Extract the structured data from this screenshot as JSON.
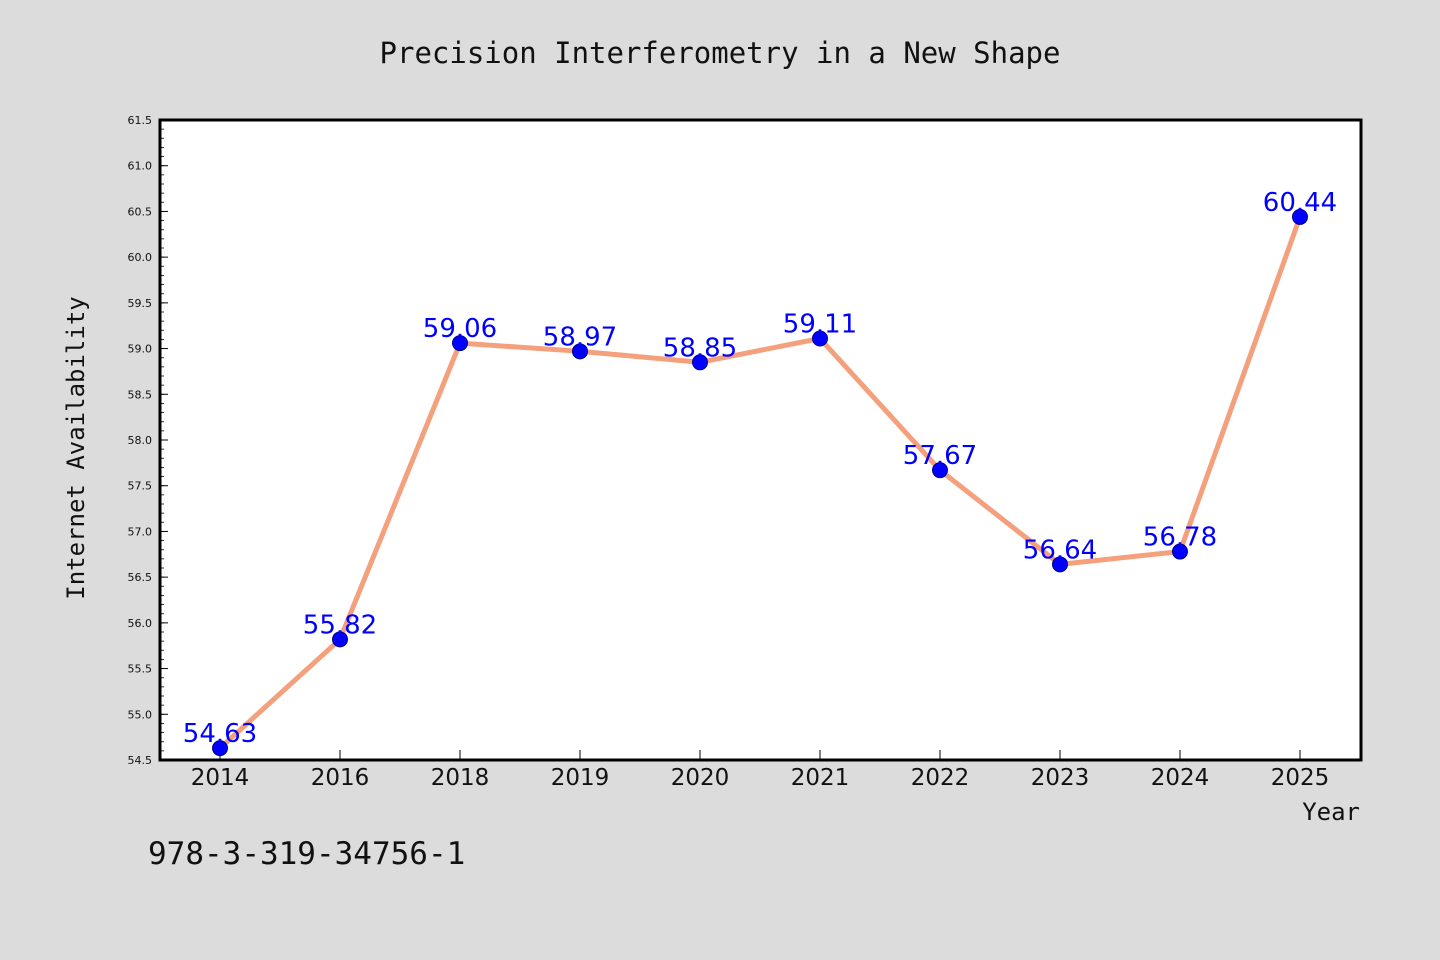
{
  "chart_data": {
    "type": "line",
    "title": "Precision Interferometry in a New Shape",
    "xlabel": "Year",
    "ylabel": "Internet Availability",
    "categories": [
      "2014",
      "2016",
      "2018",
      "2019",
      "2020",
      "2021",
      "2022",
      "2023",
      "2024",
      "2025"
    ],
    "series": [
      {
        "values": [
          54.63,
          55.82,
          59.06,
          58.97,
          58.85,
          59.11,
          57.67,
          56.64,
          56.78,
          60.44
        ],
        "data_labels": [
          "54.63",
          "55.82",
          "59.06",
          "58.97",
          "58.85",
          "59.11",
          "57.67",
          "56.64",
          "56.78",
          "60.44"
        ],
        "line_color": "#f4a07c",
        "marker_color": "#0000ff",
        "label_color": "#0000ff"
      }
    ],
    "ylim": [
      54.5,
      61.5
    ],
    "yticks": [
      "54.5",
      "55.0",
      "55.5",
      "56.0",
      "56.5",
      "57.0",
      "57.5",
      "58.0",
      "58.5",
      "59.0",
      "59.5",
      "60.0",
      "60.5",
      "61.0",
      "61.5"
    ],
    "grid": false,
    "legend": "none"
  },
  "footer": {
    "isbn": "978-3-319-34756-1"
  },
  "colors": {
    "page_background": "#dcdcdc",
    "plot_background": "#ffffff"
  }
}
